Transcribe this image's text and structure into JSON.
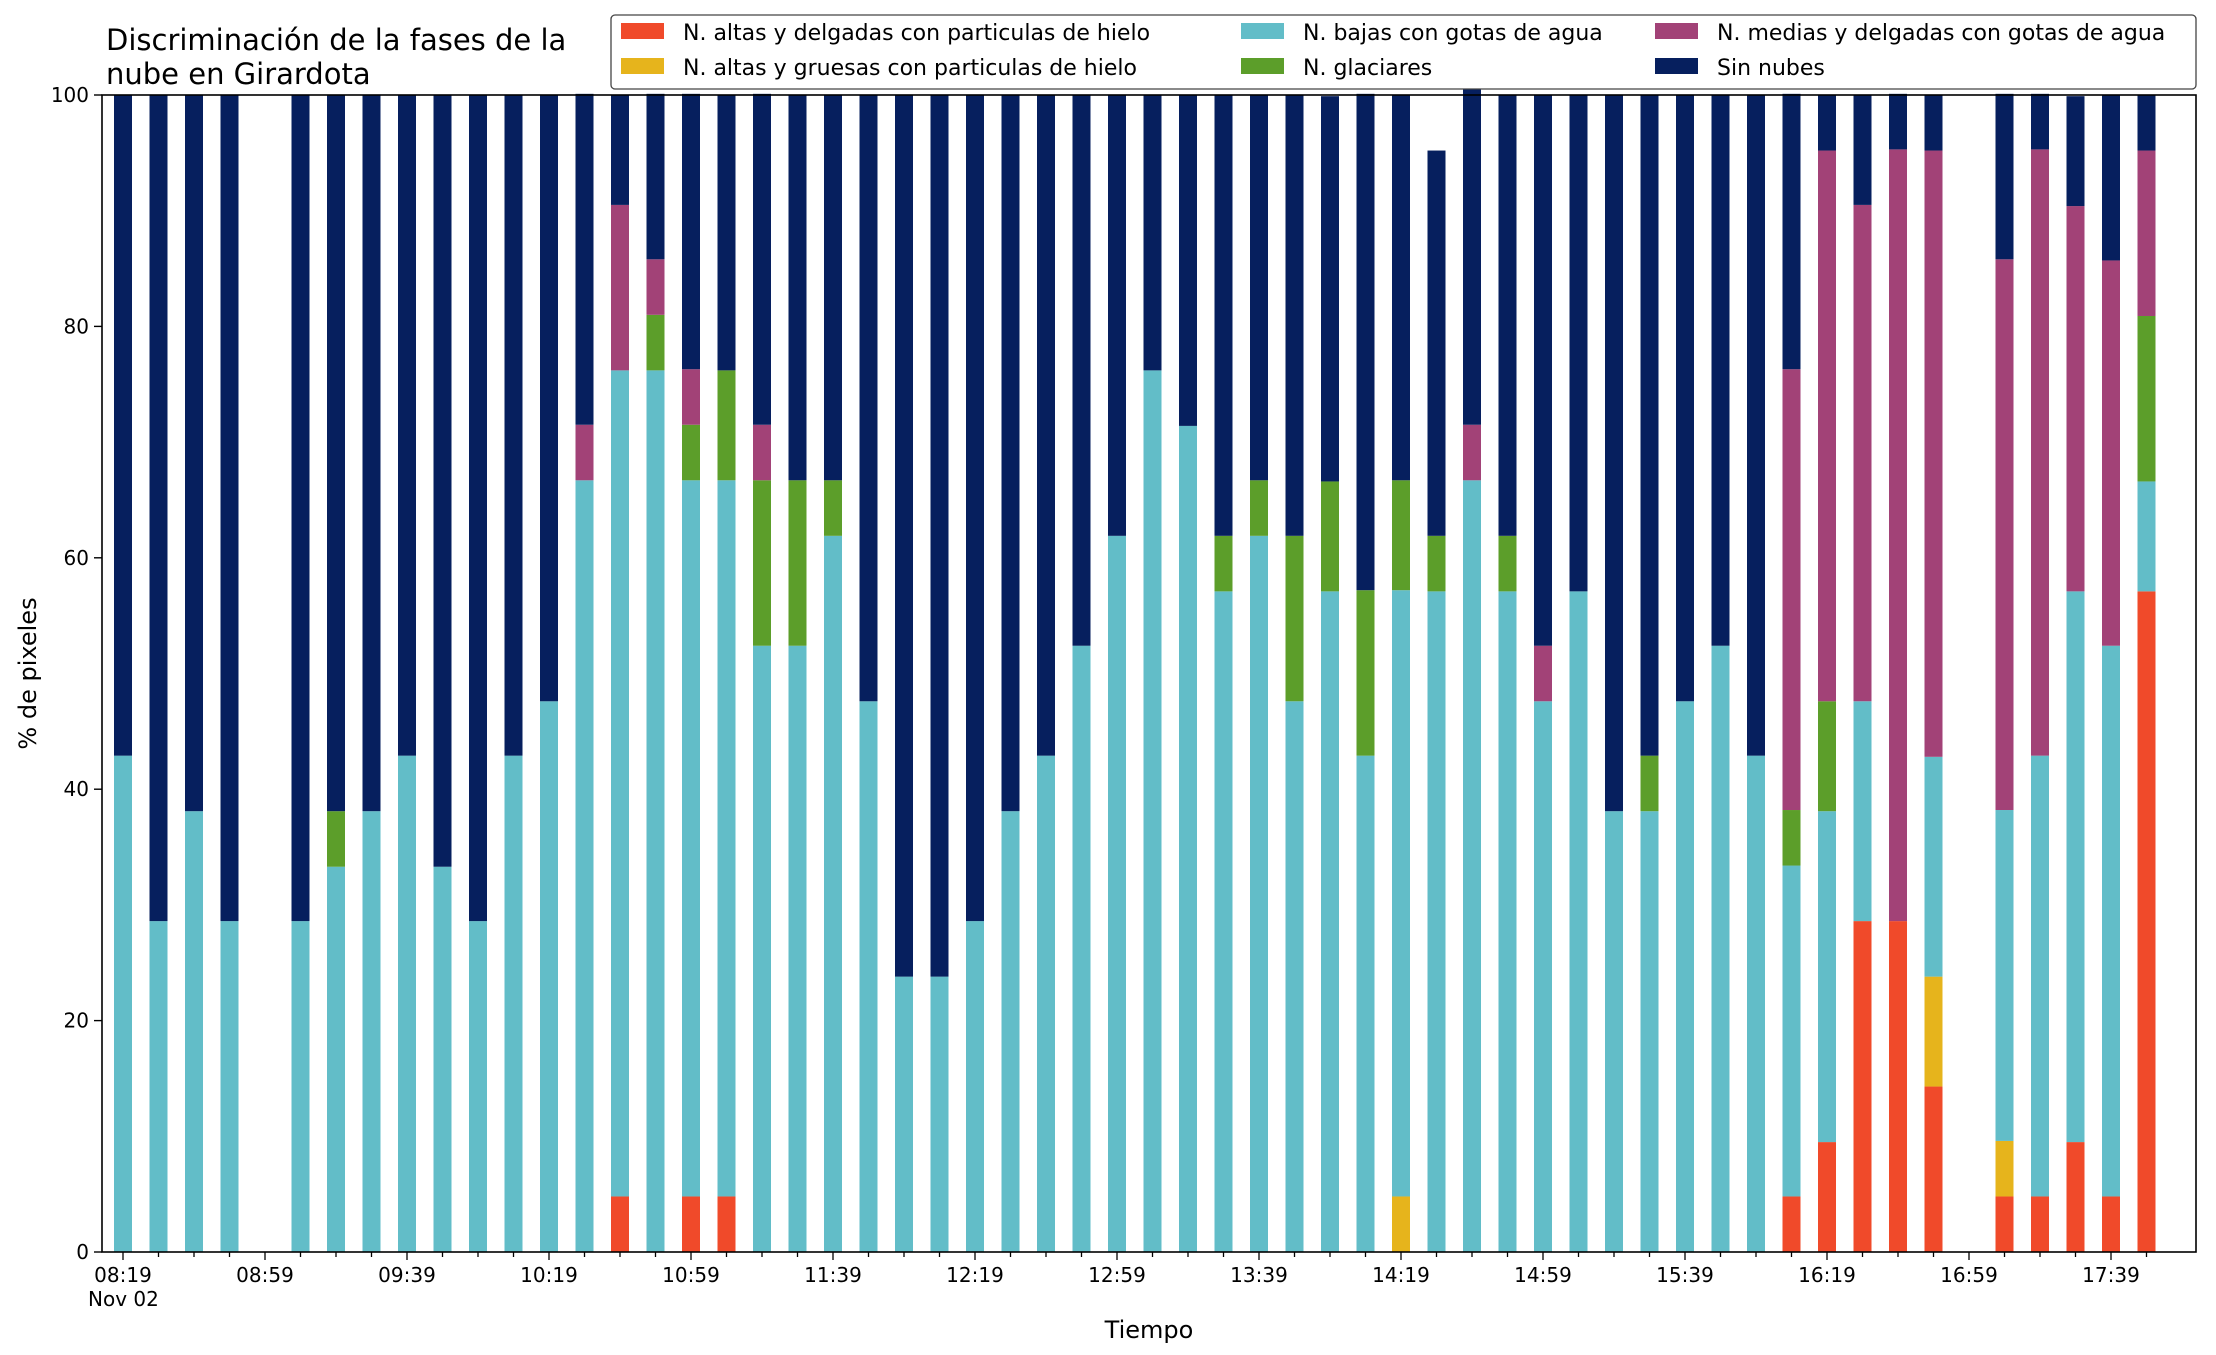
{
  "chart_data": {
    "type": "bar",
    "stacked": true,
    "title": "Discriminación de la fases de la\nnube en Girardota",
    "xlabel": "Tiempo",
    "ylabel": "% de pixeles",
    "ylim": [
      0,
      100
    ],
    "yticks": [
      0,
      20,
      40,
      60,
      80,
      100
    ],
    "grid": false,
    "legend_placement": "top-right",
    "xtick_labels": [
      "08:19\nNov 02",
      "08:59",
      "09:39",
      "10:19",
      "10:59",
      "11:39",
      "12:19",
      "12:59",
      "13:39",
      "14:19",
      "14:59",
      "15:39",
      "16:19",
      "16:59",
      "17:39"
    ],
    "interval_minutes": 10,
    "categories": [
      "08:19",
      "08:29",
      "08:39",
      "08:49",
      "08:59",
      "09:09",
      "09:19",
      "09:29",
      "09:39",
      "09:49",
      "09:59",
      "10:09",
      "10:19",
      "10:29",
      "10:39",
      "10:49",
      "10:59",
      "11:09",
      "11:19",
      "11:29",
      "11:39",
      "11:49",
      "11:59",
      "12:09",
      "12:19",
      "12:29",
      "12:39",
      "12:49",
      "12:59",
      "13:09",
      "13:19",
      "13:29",
      "13:39",
      "13:49",
      "13:59",
      "14:09",
      "14:19",
      "14:29",
      "14:39",
      "14:49",
      "14:59",
      "15:09",
      "15:19",
      "15:29",
      "15:39",
      "15:49",
      "15:59",
      "16:09",
      "16:19",
      "16:29",
      "16:39",
      "16:49",
      "16:59",
      "17:09",
      "17:19",
      "17:29",
      "17:39",
      "17:49"
    ],
    "series": [
      {
        "name": "N. altas y delgadas con particulas de hielo",
        "color": "#f04a2a",
        "values": [
          0,
          0,
          0,
          0,
          null,
          0,
          0,
          0,
          0,
          0,
          0,
          0,
          0,
          0,
          4.8,
          0,
          4.8,
          4.8,
          0,
          0,
          0,
          0,
          0,
          0,
          0,
          0,
          0,
          0,
          0,
          0,
          0,
          0,
          0,
          0,
          0,
          0,
          0,
          0,
          0,
          0,
          0,
          0,
          0,
          0,
          0,
          0,
          0,
          4.8,
          9.5,
          28.6,
          28.6,
          14.3,
          null,
          4.8,
          4.8,
          9.5,
          4.8,
          57.1
        ]
      },
      {
        "name": "N. altas y gruesas con particulas de hielo",
        "color": "#e6b41c",
        "values": [
          0,
          0,
          0,
          0,
          null,
          0,
          0,
          0,
          0,
          0,
          0,
          0,
          0,
          0,
          0,
          0,
          0,
          0,
          0,
          0,
          0,
          0,
          0,
          0,
          0,
          0,
          0,
          0,
          0,
          0,
          0,
          0,
          0,
          0,
          0,
          0,
          4.8,
          0,
          0,
          0,
          0,
          0,
          0,
          0,
          0,
          0,
          0,
          0,
          0,
          0,
          0,
          9.5,
          null,
          4.8,
          0,
          0,
          0,
          0
        ]
      },
      {
        "name": "N. bajas con gotas de agua",
        "color": "#62bdc8",
        "values": [
          42.9,
          28.6,
          38.1,
          28.6,
          null,
          28.6,
          33.3,
          38.1,
          42.9,
          33.3,
          28.6,
          42.9,
          47.6,
          66.7,
          71.4,
          76.2,
          61.9,
          61.9,
          52.4,
          52.4,
          61.9,
          47.6,
          23.8,
          23.8,
          28.6,
          38.1,
          42.9,
          52.4,
          61.9,
          76.2,
          71.4,
          57.1,
          61.9,
          47.6,
          57.1,
          42.9,
          52.4,
          57.1,
          66.7,
          57.1,
          47.6,
          57.1,
          38.1,
          38.1,
          47.6,
          52.4,
          42.9,
          28.6,
          28.6,
          19.0,
          0,
          19.0,
          null,
          28.6,
          38.1,
          47.6,
          47.6,
          9.5
        ]
      },
      {
        "name": "N. glaciares",
        "color": "#5c9e2a",
        "values": [
          0,
          0,
          0,
          0,
          null,
          0,
          4.8,
          0,
          0,
          0,
          0,
          0,
          0,
          0,
          0,
          4.8,
          4.8,
          9.5,
          14.3,
          14.3,
          4.8,
          0,
          0,
          0,
          0,
          0,
          0,
          0,
          0,
          0,
          0,
          4.8,
          4.8,
          14.3,
          9.5,
          14.3,
          9.5,
          4.8,
          0,
          4.8,
          0,
          0,
          0,
          4.8,
          0,
          0,
          0,
          4.8,
          9.5,
          0,
          0,
          0,
          null,
          0,
          0,
          0,
          0,
          14.3
        ]
      },
      {
        "name": "N. medias y delgadas con gotas de agua",
        "color": "#a24277",
        "values": [
          0,
          0,
          0,
          0,
          null,
          0,
          0,
          0,
          0,
          0,
          0,
          0,
          0,
          4.8,
          14.3,
          4.8,
          4.8,
          0,
          4.8,
          0,
          0,
          0,
          0,
          0,
          0,
          0,
          0,
          0,
          0,
          0,
          0,
          0,
          0,
          0,
          0,
          0,
          0,
          0,
          4.8,
          0,
          4.8,
          0,
          0,
          0,
          0,
          0,
          0,
          38.1,
          47.6,
          42.9,
          66.7,
          52.4,
          null,
          47.6,
          52.4,
          33.3,
          33.3,
          14.3
        ]
      },
      {
        "name": "Sin nubes",
        "color": "#061f5e",
        "values": [
          57.1,
          71.4,
          61.9,
          71.4,
          null,
          71.4,
          61.9,
          61.9,
          57.1,
          66.7,
          71.4,
          57.1,
          52.4,
          28.6,
          9.5,
          14.3,
          23.8,
          23.8,
          28.6,
          33.3,
          33.3,
          52.4,
          76.2,
          76.2,
          71.4,
          61.9,
          57.1,
          47.6,
          38.1,
          23.8,
          28.6,
          38.1,
          33.3,
          38.1,
          33.3,
          42.9,
          33.3,
          33.3,
          33.3,
          38.1,
          47.6,
          42.9,
          61.9,
          57.1,
          52.4,
          47.6,
          57.1,
          23.8,
          4.8,
          9.5,
          4.8,
          4.8,
          null,
          14.3,
          4.8,
          9.5,
          14.3,
          4.8
        ]
      }
    ]
  }
}
